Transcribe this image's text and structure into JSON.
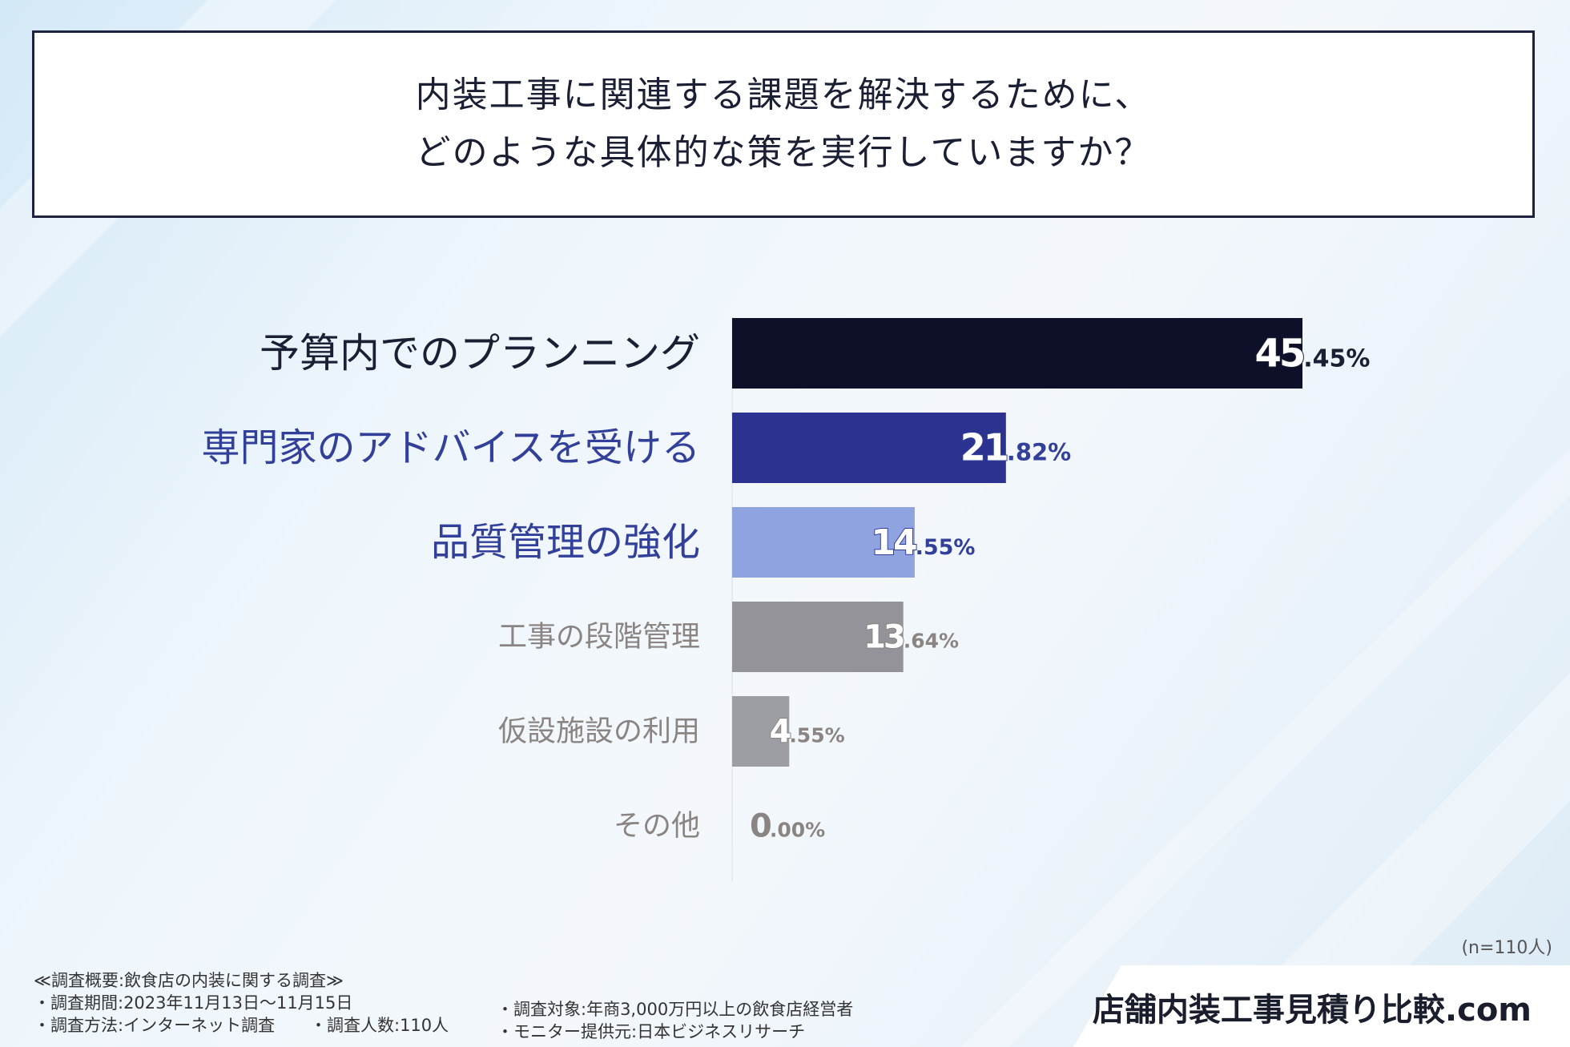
{
  "title": {
    "line1": "内装工事に関連する課題を解決するために、",
    "line2": "どのような具体的な策を実行していますか？"
  },
  "chart_data": {
    "type": "bar",
    "orientation": "horizontal",
    "categories": [
      "予算内でのプランニング",
      "専門家のアドバイスを受ける",
      "品質管理の強化",
      "工事の段階管理",
      "仮設施設の利用",
      "その他"
    ],
    "values": [
      45.45,
      21.82,
      14.55,
      13.64,
      4.55,
      0.0
    ],
    "value_labels": [
      {
        "int": "45",
        "dec": ".45%"
      },
      {
        "int": "21",
        "dec": ".82%"
      },
      {
        "int": "14",
        "dec": ".55%"
      },
      {
        "int": "13",
        "dec": ".64%"
      },
      {
        "int": "4",
        "dec": ".55%"
      },
      {
        "int": "0",
        "dec": ".00%"
      }
    ],
    "bar_colors": [
      "#0e1029",
      "#2c3290",
      "#8fa3e0",
      "#939399",
      "#9c9ea3",
      "#b0b0b3"
    ],
    "label_colors": [
      "#1b1f33",
      "#33409a",
      "#33409a",
      "#8a8583",
      "#8a8583",
      "#8a8583"
    ],
    "value_colors": [
      "#1b1f33",
      "#33409a",
      "#33409a",
      "#8a8583",
      "#8a8583",
      "#8a8583"
    ],
    "xlim": [
      0,
      45.45
    ],
    "grid": false,
    "legend": "none"
  },
  "sample_note": "(n=110人)",
  "footnotes": {
    "heading": "≪調査概要:飲食店の内装に関する調査≫",
    "period": "・調査期間:2023年11月13日～11月15日",
    "target": "・調査対象:年商3,000万円以上の飲食店経営者",
    "method": "・調査方法:インターネット調査",
    "count": "・調査人数:110人",
    "monitor": "・モニター提供元:日本ビジネスリサーチ"
  },
  "brand": "店舗内装工事見積り比較.com"
}
